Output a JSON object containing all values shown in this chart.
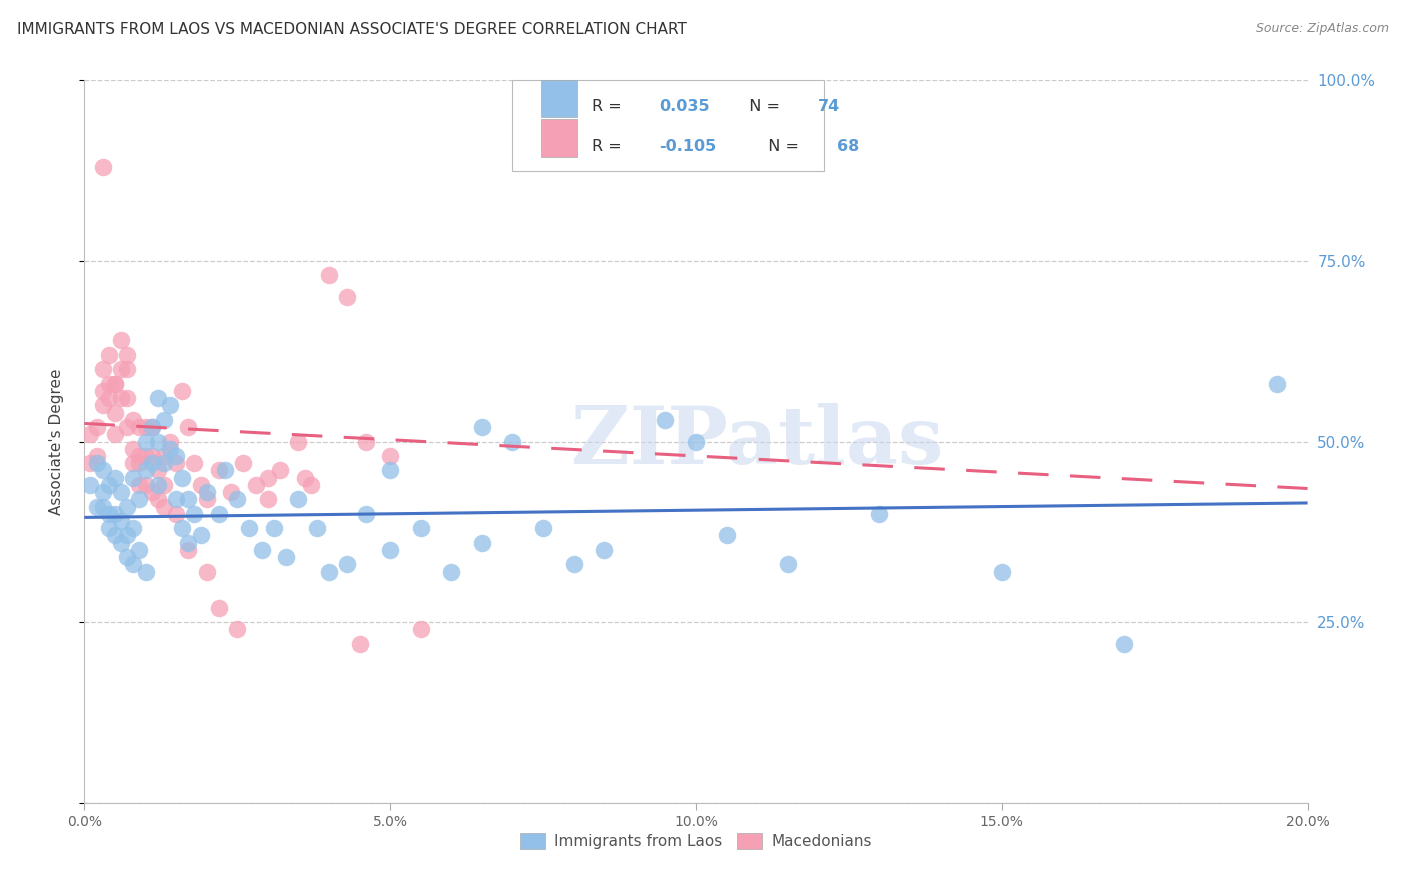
{
  "title": "IMMIGRANTS FROM LAOS VS MACEDONIAN ASSOCIATE'S DEGREE CORRELATION CHART",
  "source": "Source: ZipAtlas.com",
  "ylabel": "Associate's Degree",
  "xlim": [
    0.0,
    0.2
  ],
  "ylim": [
    0.0,
    1.0
  ],
  "xticks": [
    0.0,
    0.05,
    0.1,
    0.15,
    0.2
  ],
  "xtick_labels": [
    "0.0%",
    "5.0%",
    "10.0%",
    "15.0%",
    "20.0%"
  ],
  "yticks": [
    0.0,
    0.25,
    0.5,
    0.75,
    1.0
  ],
  "ytick_labels": [
    "",
    "25.0%",
    "50.0%",
    "75.0%",
    "100.0%"
  ],
  "legend_labels": [
    "Immigrants from Laos",
    "Macedonians"
  ],
  "blue_color": "#92C0E8",
  "pink_color": "#F5A0B5",
  "blue_line_color": "#4472C4",
  "pink_line_color": "#E86080",
  "R_blue": "0.035",
  "N_blue": "74",
  "R_pink": "-0.105",
  "N_pink": "68",
  "blue_trend": [
    0.395,
    0.415
  ],
  "pink_trend": [
    0.525,
    0.435
  ],
  "blue_x": [
    0.001,
    0.002,
    0.002,
    0.003,
    0.003,
    0.003,
    0.004,
    0.004,
    0.004,
    0.005,
    0.005,
    0.005,
    0.006,
    0.006,
    0.006,
    0.007,
    0.007,
    0.007,
    0.008,
    0.008,
    0.008,
    0.009,
    0.009,
    0.01,
    0.01,
    0.01,
    0.011,
    0.011,
    0.012,
    0.012,
    0.012,
    0.013,
    0.013,
    0.014,
    0.014,
    0.015,
    0.015,
    0.016,
    0.016,
    0.017,
    0.017,
    0.018,
    0.019,
    0.02,
    0.022,
    0.023,
    0.025,
    0.027,
    0.029,
    0.031,
    0.033,
    0.035,
    0.038,
    0.04,
    0.043,
    0.046,
    0.05,
    0.055,
    0.06,
    0.065,
    0.07,
    0.075,
    0.085,
    0.095,
    0.105,
    0.115,
    0.13,
    0.15,
    0.17,
    0.195,
    0.05,
    0.065,
    0.08,
    0.1
  ],
  "blue_y": [
    0.44,
    0.47,
    0.41,
    0.46,
    0.41,
    0.43,
    0.44,
    0.4,
    0.38,
    0.45,
    0.4,
    0.37,
    0.43,
    0.36,
    0.39,
    0.41,
    0.37,
    0.34,
    0.45,
    0.38,
    0.33,
    0.42,
    0.35,
    0.5,
    0.46,
    0.32,
    0.52,
    0.47,
    0.56,
    0.5,
    0.44,
    0.53,
    0.47,
    0.55,
    0.49,
    0.48,
    0.42,
    0.45,
    0.38,
    0.42,
    0.36,
    0.4,
    0.37,
    0.43,
    0.4,
    0.46,
    0.42,
    0.38,
    0.35,
    0.38,
    0.34,
    0.42,
    0.38,
    0.32,
    0.33,
    0.4,
    0.35,
    0.38,
    0.32,
    0.36,
    0.5,
    0.38,
    0.35,
    0.53,
    0.37,
    0.33,
    0.4,
    0.32,
    0.22,
    0.58,
    0.46,
    0.52,
    0.33,
    0.5
  ],
  "pink_x": [
    0.001,
    0.001,
    0.002,
    0.002,
    0.003,
    0.003,
    0.003,
    0.004,
    0.004,
    0.004,
    0.005,
    0.005,
    0.005,
    0.006,
    0.006,
    0.006,
    0.007,
    0.007,
    0.007,
    0.008,
    0.008,
    0.008,
    0.009,
    0.009,
    0.009,
    0.01,
    0.01,
    0.01,
    0.011,
    0.011,
    0.012,
    0.012,
    0.013,
    0.013,
    0.014,
    0.015,
    0.016,
    0.017,
    0.018,
    0.019,
    0.02,
    0.022,
    0.024,
    0.026,
    0.028,
    0.03,
    0.032,
    0.035,
    0.037,
    0.04,
    0.043,
    0.046,
    0.05,
    0.055,
    0.003,
    0.005,
    0.007,
    0.009,
    0.011,
    0.013,
    0.015,
    0.017,
    0.02,
    0.03,
    0.036,
    0.045,
    0.022,
    0.025
  ],
  "pink_y": [
    0.47,
    0.51,
    0.52,
    0.48,
    0.6,
    0.55,
    0.57,
    0.62,
    0.58,
    0.56,
    0.58,
    0.54,
    0.51,
    0.64,
    0.6,
    0.56,
    0.6,
    0.56,
    0.52,
    0.53,
    0.49,
    0.47,
    0.52,
    0.48,
    0.44,
    0.52,
    0.48,
    0.44,
    0.52,
    0.48,
    0.46,
    0.42,
    0.48,
    0.44,
    0.5,
    0.47,
    0.57,
    0.52,
    0.47,
    0.44,
    0.42,
    0.46,
    0.43,
    0.47,
    0.44,
    0.42,
    0.46,
    0.5,
    0.44,
    0.73,
    0.7,
    0.5,
    0.48,
    0.24,
    0.88,
    0.58,
    0.62,
    0.47,
    0.43,
    0.41,
    0.4,
    0.35,
    0.32,
    0.45,
    0.45,
    0.22,
    0.27,
    0.24
  ],
  "watermark_text": "ZIPatlas",
  "background_color": "#FFFFFF",
  "grid_color": "#CCCCCC",
  "right_ytick_color": "#5B9BD5"
}
